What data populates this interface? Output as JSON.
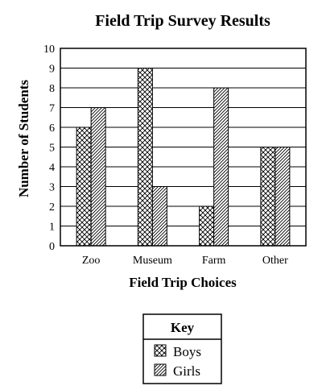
{
  "chart_data": {
    "type": "bar",
    "title": "Field Trip Survey Results",
    "xlabel": "Field Trip Choices",
    "ylabel": "Number of Students",
    "categories": [
      "Zoo",
      "Museum",
      "Farm",
      "Other"
    ],
    "series": [
      {
        "name": "Boys",
        "values": [
          6,
          9,
          2,
          5
        ],
        "pattern": "crosshatch"
      },
      {
        "name": "Girls",
        "values": [
          7,
          3,
          8,
          5
        ],
        "pattern": "diagonal"
      }
    ],
    "ylim": [
      0,
      10
    ],
    "yticks": [
      0,
      1,
      2,
      3,
      4,
      5,
      6,
      7,
      8,
      9,
      10
    ],
    "grid": true,
    "legend": {
      "title": "Key",
      "placement": "bottom-center"
    }
  }
}
